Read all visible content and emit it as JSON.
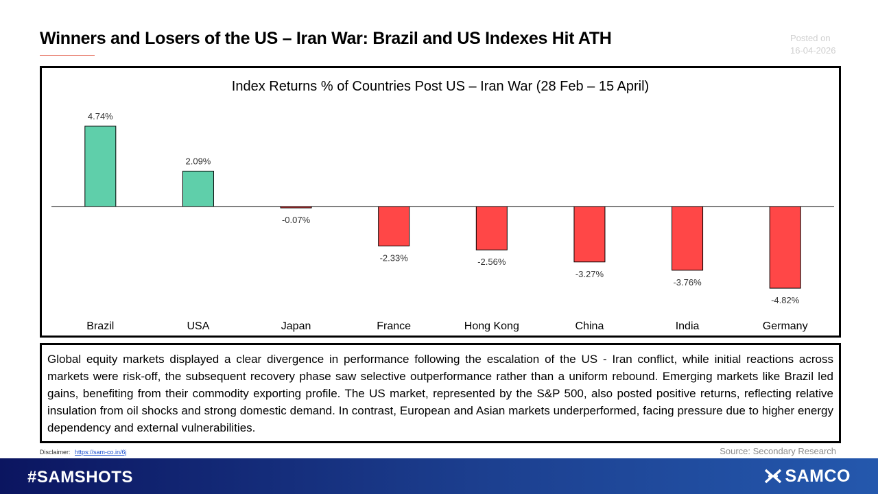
{
  "header": {
    "title": "Winners and Losers of the US – Iran War: Brazil and US Indexes Hit ATH",
    "posted_label": "Posted on",
    "posted_date": "16-04-2026"
  },
  "chart_data": {
    "type": "bar",
    "title": "Index Returns % of Countries Post US – Iran War (28 Feb – 15 April)",
    "categories": [
      "Brazil",
      "USA",
      "Japan",
      "France",
      "Hong Kong",
      "China",
      "India",
      "Germany"
    ],
    "values": [
      4.74,
      2.09,
      -0.07,
      -2.33,
      -2.56,
      -3.27,
      -3.76,
      -4.82
    ],
    "value_labels": [
      "4.74%",
      "2.09%",
      "-0.07%",
      "-2.33%",
      "-2.56%",
      "-3.27%",
      "-3.76%",
      "-4.82%"
    ],
    "xlabel": "",
    "ylabel": "",
    "ylim": [
      -4.82,
      4.74
    ],
    "grid": false,
    "colors": {
      "positive": "#5fcfaa",
      "negative": "#ff4747"
    }
  },
  "summary": {
    "text": "Global equity markets displayed a clear divergence in performance following the escalation of the US - Iran conflict, while initial reactions across markets were risk-off, the subsequent recovery phase saw selective outperformance rather than a uniform rebound. Emerging markets like Brazil led gains, benefiting from their commodity exporting profile. The US market, represented by the S&P 500, also posted positive returns, reflecting relative insulation from oil shocks and strong domestic demand. In contrast, European and Asian markets underperformed, facing pressure due to higher energy dependency and external vulnerabilities."
  },
  "footnote": {
    "disclaimer_label": "Disclaimer:",
    "disclaimer_link": "https://sam-co.in/6j",
    "source": "Source: Secondary Research"
  },
  "footer": {
    "hashtag": "#SAMSHOTS",
    "brand": "SAMCO",
    "logo_icon": "samco-logo-icon"
  }
}
